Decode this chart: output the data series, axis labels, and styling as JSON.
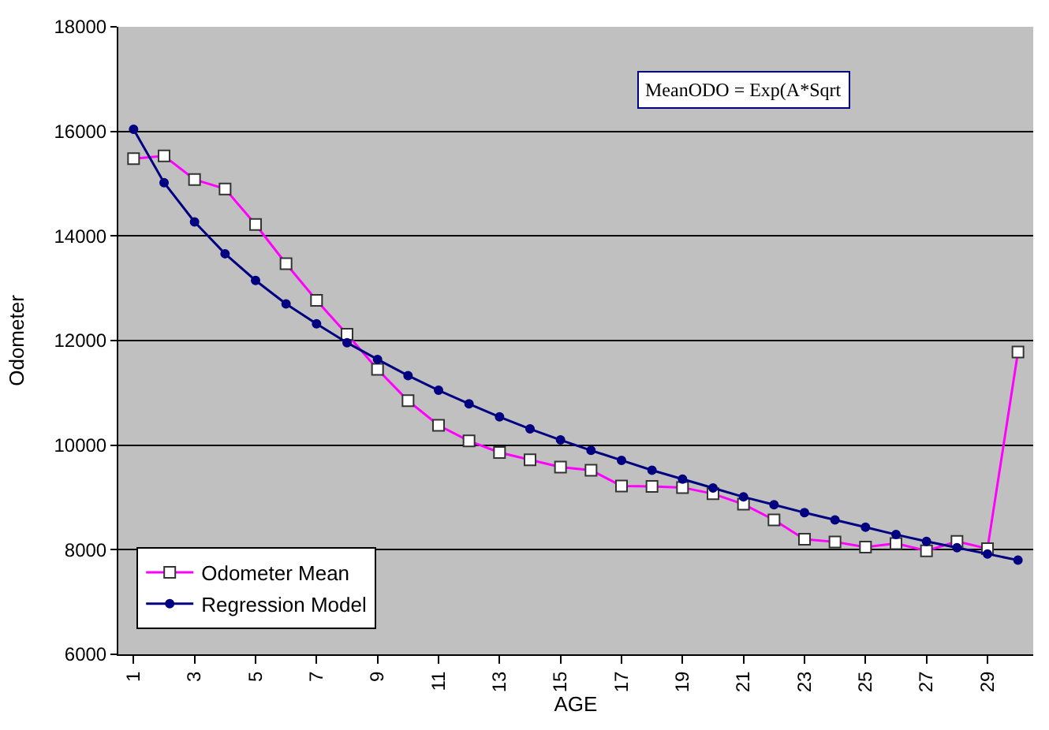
{
  "chart_data": {
    "type": "line",
    "xlabel": "AGE",
    "ylabel": "Odometer",
    "categories": [
      "1",
      null,
      "3",
      null,
      "5",
      null,
      "7",
      null,
      "9",
      null,
      "11",
      null,
      "13",
      null,
      "15",
      null,
      "17",
      null,
      "19",
      null,
      "21",
      null,
      "23",
      null,
      "25",
      null,
      "27",
      null,
      "29",
      null
    ],
    "series": [
      {
        "name": "Odometer Mean",
        "color": "#ff00ff",
        "marker": "square",
        "values": [
          15480,
          15530,
          15080,
          14900,
          14220,
          13470,
          12770,
          12120,
          11450,
          10850,
          10380,
          10080,
          9860,
          9720,
          9580,
          9520,
          9220,
          9210,
          9190,
          9070,
          8870,
          8570,
          8200,
          8150,
          8050,
          8120,
          7980,
          8160,
          8020,
          11780
        ]
      },
      {
        "name": "Regression Model",
        "color": "#000080",
        "marker": "circle",
        "values": [
          16040,
          15020,
          14270,
          13660,
          13150,
          12700,
          12320,
          11960,
          11640,
          11330,
          11050,
          10790,
          10540,
          10310,
          10100,
          9900,
          9710,
          9520,
          9350,
          9180,
          9010,
          8860,
          8710,
          8570,
          8430,
          8290,
          8160,
          8040,
          7920,
          7800
        ]
      }
    ],
    "ylim": [
      6000,
      18000
    ],
    "yticks": [
      6000,
      8000,
      10000,
      12000,
      14000,
      16000,
      18000
    ],
    "grid": "y",
    "legend": "bottom left",
    "annotations": [
      "MeanODO = Exp(A*Sqrt"
    ]
  }
}
